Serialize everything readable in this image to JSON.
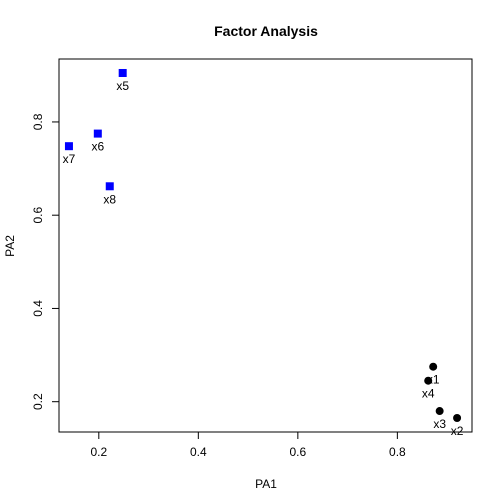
{
  "chart_data": {
    "type": "scatter",
    "title": "Factor Analysis",
    "xlabel": "PA1",
    "ylabel": "PA2",
    "xlim": [
      0.12,
      0.95
    ],
    "ylim": [
      0.135,
      0.935
    ],
    "xticks": [
      0.2,
      0.4,
      0.6,
      0.8
    ],
    "yticks": [
      0.2,
      0.4,
      0.6,
      0.8
    ],
    "tick_labels": {
      "x": [
        "0.2",
        "0.4",
        "0.6",
        "0.8"
      ],
      "y": [
        "0.2",
        "0.4",
        "0.6",
        "0.8"
      ]
    },
    "grid": false,
    "points": [
      {
        "label": "x1",
        "x": 0.872,
        "y": 0.275,
        "color": "#000000",
        "shape": "circle"
      },
      {
        "label": "x2",
        "x": 0.92,
        "y": 0.165,
        "color": "#000000",
        "shape": "circle"
      },
      {
        "label": "x3",
        "x": 0.885,
        "y": 0.18,
        "color": "#000000",
        "shape": "circle"
      },
      {
        "label": "x4",
        "x": 0.862,
        "y": 0.245,
        "color": "#000000",
        "shape": "circle"
      },
      {
        "label": "x5",
        "x": 0.248,
        "y": 0.905,
        "color": "#0000ff",
        "shape": "square"
      },
      {
        "label": "x6",
        "x": 0.198,
        "y": 0.775,
        "color": "#0000ff",
        "shape": "square"
      },
      {
        "label": "x7",
        "x": 0.14,
        "y": 0.748,
        "color": "#0000ff",
        "shape": "square"
      },
      {
        "label": "x8",
        "x": 0.222,
        "y": 0.662,
        "color": "#0000ff",
        "shape": "square"
      }
    ]
  }
}
